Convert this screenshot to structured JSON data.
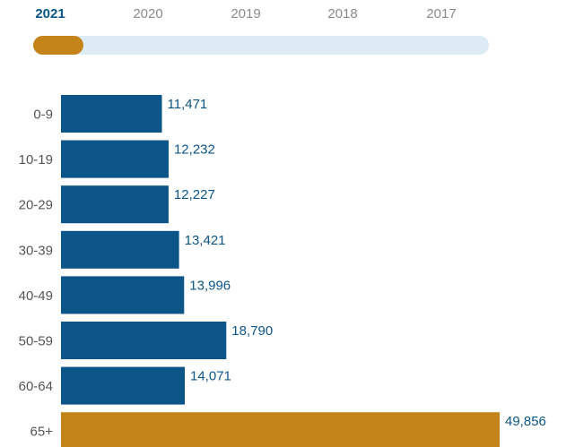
{
  "year_selector": {
    "years": [
      "2021",
      "2020",
      "2019",
      "2018",
      "2017"
    ],
    "selected": "2021",
    "selected_index": 0,
    "track_color": "#ddebf5",
    "thumb_color": "#c58419",
    "active_color": "#0b5588",
    "inactive_color": "#8a8a8a"
  },
  "chart_data": {
    "type": "bar",
    "orientation": "horizontal",
    "categories": [
      "0-9",
      "10-19",
      "20-29",
      "30-39",
      "40-49",
      "50-59",
      "60-64",
      "65+"
    ],
    "values": [
      11471,
      12232,
      12227,
      13421,
      13996,
      18790,
      14071,
      49856
    ],
    "value_labels": [
      "11,471",
      "12,232",
      "12,227",
      "13,421",
      "13,996",
      "18,790",
      "14,071",
      "49,856"
    ],
    "colors": [
      "#0b5588",
      "#0b5588",
      "#0b5588",
      "#0b5588",
      "#0b5588",
      "#0b5588",
      "#0b5588",
      "#c58419"
    ],
    "label_color": "#0b5588",
    "category_label_color": "#555555",
    "xlim": [
      0,
      49856
    ],
    "title": "",
    "xlabel": "",
    "ylabel": "",
    "grid": false,
    "legend": "none"
  }
}
